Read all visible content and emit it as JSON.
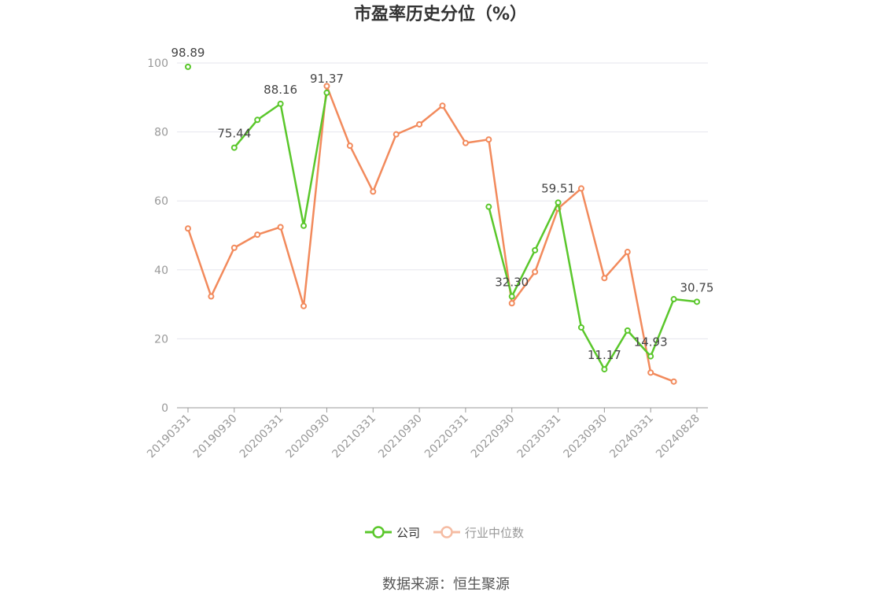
{
  "chart_data": {
    "type": "line",
    "title": "市盈率历史分位（%）",
    "source": "数据来源：恒生聚源",
    "ylim": [
      0,
      100
    ],
    "yticks": [
      0,
      20,
      40,
      60,
      80,
      100
    ],
    "x_tick_labels": [
      "20190331",
      "20190930",
      "20200331",
      "20200930",
      "20210331",
      "20210930",
      "20220331",
      "20220930",
      "20230331",
      "20230930",
      "20240331",
      "20240828"
    ],
    "legend_position": "bottom-center",
    "grid": true,
    "colors": {
      "company": "#5ac72b",
      "industry": "#f28a5c",
      "axis": "#999999",
      "grid": "#e6e6ee"
    },
    "series": [
      {
        "name": "公司",
        "color": "#5ac72b",
        "values": [
          98.89,
          null,
          75.44,
          83.5,
          88.16,
          52.8,
          91.37,
          null,
          null,
          null,
          null,
          null,
          null,
          58.3,
          32.3,
          45.7,
          59.51,
          23.3,
          11.17,
          22.4,
          14.93,
          31.5,
          30.75
        ],
        "labels": {
          "0": "98.89",
          "2": "75.44",
          "4": "88.16",
          "6": "91.37",
          "14": "32.30",
          "16": "59.51",
          "18": "11.17",
          "20": "14.93",
          "22": "30.75"
        }
      },
      {
        "name": "行业中位数",
        "color": "#f28a5c",
        "values": [
          52.0,
          32.3,
          46.4,
          50.2,
          52.4,
          29.5,
          93.3,
          76.0,
          62.7,
          79.3,
          82.2,
          87.6,
          76.8,
          77.8,
          30.3,
          39.4,
          57.8,
          63.6,
          37.6,
          45.2,
          10.2,
          7.6,
          null
        ]
      }
    ]
  }
}
